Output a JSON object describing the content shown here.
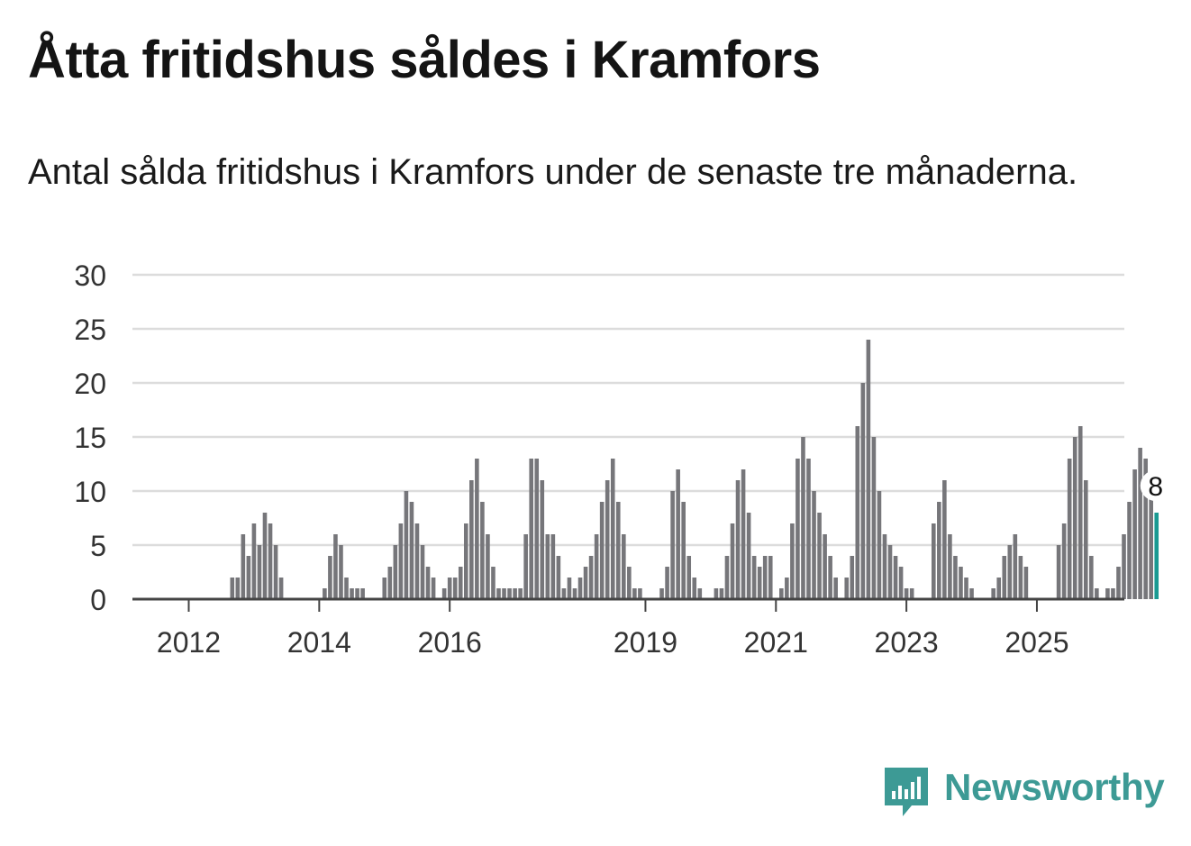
{
  "title": "Åtta fritidshus såldes i Kramfors",
  "subtitle": "Antal sålda fritidshus i Kramfors under de senaste tre månaderna.",
  "brand": {
    "name": "Newsworthy",
    "icon": "newsworthy-logo-icon",
    "color": "#3d9a95"
  },
  "colors": {
    "bar": "#76767a",
    "highlight": "#1a9a92",
    "grid": "#dcdcdc",
    "axis": "#444444"
  },
  "chart_data": {
    "type": "bar",
    "ylim": [
      0,
      30
    ],
    "yticks": [
      0,
      5,
      10,
      15,
      20,
      25,
      30
    ],
    "xtick_labels": [
      "2012",
      "2014",
      "2016",
      "2019",
      "2021",
      "2023",
      "2025"
    ],
    "start": "2011-10",
    "values": [
      0,
      0,
      0,
      0,
      0,
      0,
      0,
      0,
      0,
      0,
      0,
      2,
      2,
      6,
      4,
      7,
      5,
      8,
      7,
      5,
      2,
      0,
      0,
      0,
      0,
      0,
      0,
      0,
      1,
      4,
      6,
      5,
      2,
      1,
      1,
      1,
      0,
      0,
      0,
      2,
      3,
      5,
      7,
      10,
      9,
      7,
      5,
      3,
      2,
      0,
      1,
      2,
      2,
      3,
      7,
      11,
      13,
      9,
      6,
      3,
      1,
      1,
      1,
      1,
      1,
      6,
      13,
      13,
      11,
      6,
      6,
      4,
      1,
      2,
      1,
      2,
      3,
      4,
      6,
      9,
      11,
      13,
      9,
      6,
      3,
      1,
      1,
      0,
      0,
      0,
      1,
      3,
      10,
      12,
      9,
      4,
      2,
      1,
      0,
      0,
      1,
      1,
      4,
      7,
      11,
      12,
      8,
      4,
      3,
      4,
      4,
      0,
      1,
      2,
      7,
      13,
      15,
      13,
      10,
      8,
      6,
      4,
      2,
      0,
      2,
      4,
      16,
      20,
      24,
      15,
      10,
      6,
      5,
      4,
      3,
      1,
      1,
      0,
      0,
      0,
      7,
      9,
      11,
      6,
      4,
      3,
      2,
      1,
      0,
      0,
      0,
      1,
      2,
      4,
      5,
      6,
      4,
      3,
      0,
      0,
      0,
      0,
      0,
      5,
      7,
      13,
      15,
      16,
      11,
      4,
      1,
      0,
      1,
      1,
      3,
      6,
      9,
      12,
      14,
      13,
      11,
      8
    ],
    "annotation": {
      "label": "8",
      "value": 8
    }
  }
}
